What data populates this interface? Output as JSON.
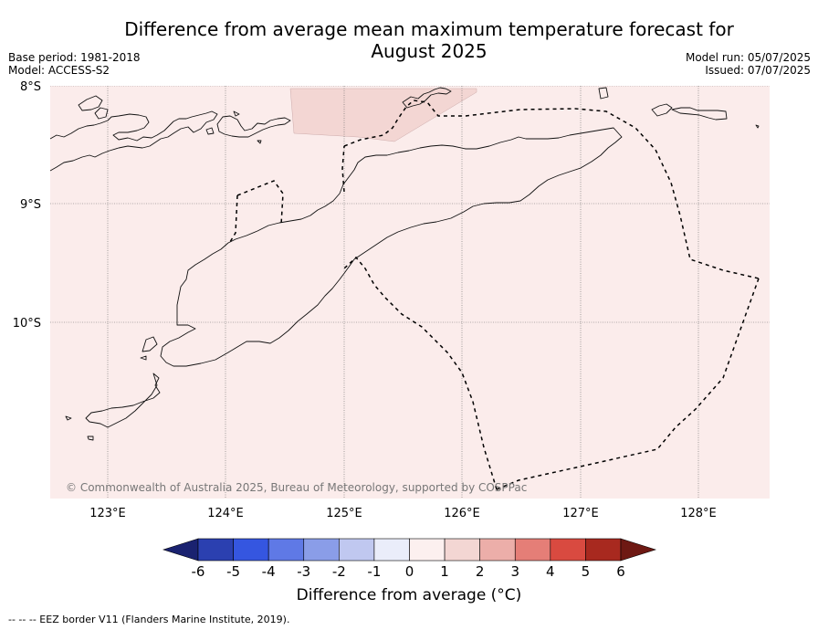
{
  "title_line1": "Difference from average mean maximum temperature forecast for",
  "title_line2": "August 2025",
  "meta_left": {
    "base_period": "Base period: 1981-2018",
    "model": "Model: ACCESS-S2"
  },
  "meta_right": {
    "model_run": "Model run: 05/07/2025",
    "issued": "Issued: 07/07/2025"
  },
  "map": {
    "lat_labels": [
      "8°S",
      "9°S",
      "10°S"
    ],
    "lon_labels": [
      "123°E",
      "124°E",
      "125°E",
      "126°E",
      "127°E",
      "128°E"
    ],
    "background_fill": "#fbeceb",
    "patch_fill": "#f3d6d3",
    "copyright": "© Commonwealth of Australia 2025, Bureau of Meteorology, supported by COSPPac"
  },
  "colorbar": {
    "ticks": [
      "-6",
      "-5",
      "-4",
      "-3",
      "-2",
      "-1",
      "0",
      "1",
      "2",
      "3",
      "4",
      "5",
      "6"
    ],
    "colors": [
      "#1a2270",
      "#2b40b0",
      "#3556e0",
      "#5f79e6",
      "#8a9de8",
      "#c0c8f0",
      "#eaedfa",
      "#fcf0ef",
      "#f3d6d3",
      "#ecaea9",
      "#e57e77",
      "#d94a40",
      "#a8291f",
      "#6e1913"
    ],
    "title": "Difference from average (°C)"
  },
  "footnote": "--  --  -- EEZ border V11 (Flanders Marine Institute, 2019)."
}
